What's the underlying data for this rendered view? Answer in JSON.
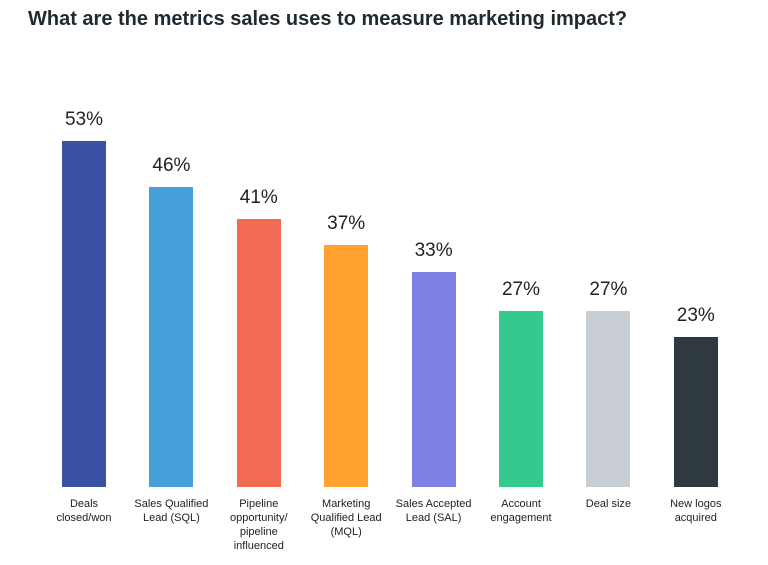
{
  "chart_data": {
    "type": "bar",
    "title": "What are the metrics sales uses to measure marketing impact?",
    "categories": [
      "Deals closed/won",
      "Sales Qualified Lead (SQL)",
      "Pipeline opportunity/ pipeline influenced",
      "Marketing Qualified Lead (MQL)",
      "Sales Accepted Lead (SAL)",
      "Account engagement",
      "Deal size",
      "New logos acquired"
    ],
    "values": [
      53,
      46,
      41,
      37,
      33,
      27,
      27,
      23
    ],
    "value_labels": [
      "53%",
      "46%",
      "41%",
      "37%",
      "33%",
      "27%",
      "27%",
      "23%"
    ],
    "colors": [
      "#3a52a5",
      "#459fd9",
      "#f26b55",
      "#ffa22f",
      "#7f7ee2",
      "#34c98e",
      "#c9cdd4",
      "#2f3a40"
    ]
  }
}
